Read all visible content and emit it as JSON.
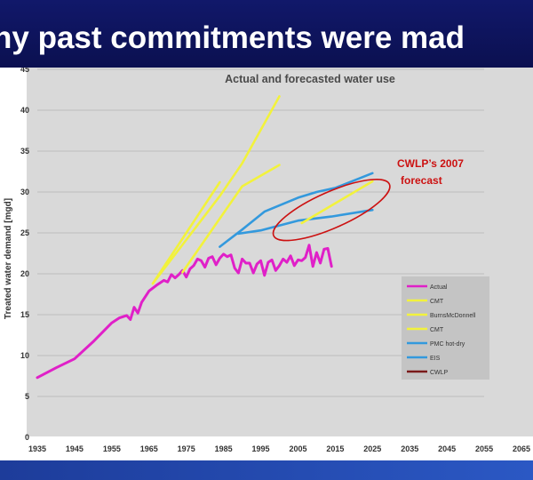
{
  "slide": {
    "title": "hy past commitments were mad"
  },
  "colors": {
    "background": "#0d1457",
    "actual": "#e020c8",
    "cmt": "#f2f23c",
    "pmc": "#3399dd",
    "cwlp": "#7a1a1a",
    "annotation": "#cc1111"
  },
  "chart_data": {
    "type": "line",
    "title": "Actual and forecasted water use",
    "xlabel": "",
    "ylabel": "Treated water demand [mgd]",
    "xlim": [
      1935,
      2065
    ],
    "ylim": [
      0,
      45
    ],
    "x_ticks": [
      "1935",
      "1945",
      "1955",
      "1965",
      "1975",
      "1985",
      "1995",
      "2005",
      "2015",
      "2025",
      "2035",
      "2045",
      "2055",
      "2065"
    ],
    "y_ticks": [
      "0",
      "5",
      "10",
      "15",
      "20",
      "25",
      "30",
      "35",
      "40",
      "45"
    ],
    "grid": "horizontal",
    "legend_position": "lower-right",
    "series": [
      {
        "name": "Actual",
        "color": "#e020c8",
        "points": [
          [
            1935,
            7.3
          ],
          [
            1940,
            8.5
          ],
          [
            1945,
            9.6
          ],
          [
            1950,
            11.7
          ],
          [
            1955,
            14.0
          ],
          [
            1957,
            14.6
          ],
          [
            1959,
            14.9
          ],
          [
            1960,
            14.4
          ],
          [
            1961,
            15.9
          ],
          [
            1962,
            15.2
          ],
          [
            1963,
            16.5
          ],
          [
            1965,
            17.9
          ],
          [
            1967,
            18.6
          ],
          [
            1969,
            19.2
          ],
          [
            1970,
            19.0
          ],
          [
            1971,
            19.9
          ],
          [
            1972,
            19.5
          ],
          [
            1973,
            19.9
          ],
          [
            1974,
            20.4
          ],
          [
            1975,
            19.6
          ],
          [
            1976,
            20.6
          ],
          [
            1977,
            21.0
          ],
          [
            1978,
            21.8
          ],
          [
            1979,
            21.6
          ],
          [
            1980,
            20.8
          ],
          [
            1981,
            21.9
          ],
          [
            1982,
            22.1
          ],
          [
            1983,
            21.1
          ],
          [
            1984,
            21.9
          ],
          [
            1985,
            22.4
          ],
          [
            1986,
            22.1
          ],
          [
            1987,
            22.3
          ],
          [
            1988,
            20.7
          ],
          [
            1989,
            20.1
          ],
          [
            1990,
            21.8
          ],
          [
            1991,
            21.3
          ],
          [
            1992,
            21.3
          ],
          [
            1993,
            20.1
          ],
          [
            1994,
            21.2
          ],
          [
            1995,
            21.6
          ],
          [
            1996,
            19.8
          ],
          [
            1997,
            21.4
          ],
          [
            1998,
            21.7
          ],
          [
            1999,
            20.4
          ],
          [
            2000,
            21.0
          ],
          [
            2001,
            21.8
          ],
          [
            2002,
            21.4
          ],
          [
            2003,
            22.2
          ],
          [
            2004,
            21.0
          ],
          [
            2005,
            21.7
          ],
          [
            2006,
            21.6
          ],
          [
            2007,
            22.0
          ],
          [
            2008,
            23.5
          ],
          [
            2009,
            20.9
          ],
          [
            2010,
            22.6
          ],
          [
            2011,
            21.3
          ],
          [
            2012,
            23.0
          ],
          [
            2013,
            23.1
          ],
          [
            2014,
            20.9
          ]
        ]
      },
      {
        "name": "CMT",
        "color": "#f2f23c",
        "points": [
          [
            1966,
            18.8
          ],
          [
            1984,
            31.2
          ]
        ]
      },
      {
        "name": "BurnsMcDonnell",
        "color": "#f2f23c",
        "points": [
          [
            1966,
            18.8
          ],
          [
            1984,
            29.5
          ],
          [
            1990,
            33.5
          ],
          [
            2000,
            41.7
          ]
        ]
      },
      {
        "name": "CMT",
        "color": "#f2f23c",
        "points": [
          [
            1974,
            20.2
          ],
          [
            1990,
            30.7
          ],
          [
            2000,
            33.3
          ]
        ]
      },
      {
        "name": "PMC hot-dry",
        "color": "#3399dd",
        "points": [
          [
            1984,
            23.3
          ],
          [
            1990,
            25.4
          ],
          [
            1996,
            27.6
          ],
          [
            2005,
            29.3
          ],
          [
            2010,
            30.0
          ],
          [
            2015,
            30.5
          ],
          [
            2025,
            32.3
          ]
        ]
      },
      {
        "name": "EIS",
        "color": "#3399dd",
        "points": [
          [
            1989,
            24.9
          ],
          [
            1995,
            25.3
          ],
          [
            2005,
            26.5
          ],
          [
            2014,
            27.0
          ],
          [
            2025,
            27.8
          ]
        ]
      },
      {
        "name": "CWLP",
        "color": "#f2f23c",
        "points": [
          [
            2006,
            26.2
          ],
          [
            2025,
            31.3
          ]
        ]
      }
    ],
    "annotation": {
      "text_lines": [
        "CWLP’s 2007",
        "forecast"
      ],
      "ellipse_center": [
        2014,
        27.8
      ],
      "ellipse_semi_axes": [
        17,
        2.2
      ],
      "ellipse_rotation_deg": -24
    }
  }
}
